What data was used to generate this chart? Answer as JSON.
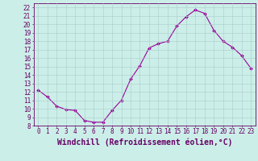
{
  "x": [
    0,
    1,
    2,
    3,
    4,
    5,
    6,
    7,
    8,
    9,
    10,
    11,
    12,
    13,
    14,
    15,
    16,
    17,
    18,
    19,
    20,
    21,
    22,
    23
  ],
  "y": [
    12.2,
    11.4,
    10.3,
    9.9,
    9.8,
    8.6,
    8.4,
    8.4,
    9.8,
    11.0,
    13.5,
    15.1,
    17.2,
    17.7,
    18.0,
    19.8,
    20.9,
    21.7,
    21.3,
    19.3,
    18.0,
    17.3,
    16.3,
    14.8
  ],
  "line_color": "#990099",
  "marker": "D",
  "marker_size": 2.0,
  "bg_color": "#cceee8",
  "grid_color": "#aacccc",
  "ylim": [
    8,
    22.5
  ],
  "xlim": [
    -0.5,
    23.5
  ],
  "yticks": [
    8,
    9,
    10,
    11,
    12,
    13,
    14,
    15,
    16,
    17,
    18,
    19,
    20,
    21,
    22
  ],
  "xticks": [
    0,
    1,
    2,
    3,
    4,
    5,
    6,
    7,
    8,
    9,
    10,
    11,
    12,
    13,
    14,
    15,
    16,
    17,
    18,
    19,
    20,
    21,
    22,
    23
  ],
  "xlabel": "Windchill (Refroidissement éolien,°C)",
  "tick_label_fontsize": 5.5,
  "xlabel_fontsize": 7.0,
  "axis_color": "#660066",
  "spine_color": "#660066",
  "line_width": 0.8
}
